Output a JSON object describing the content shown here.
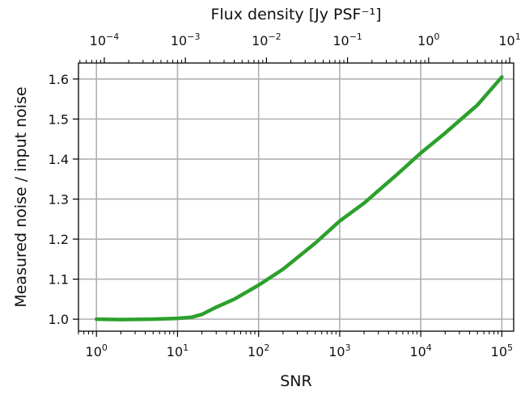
{
  "chart_data": {
    "type": "line",
    "xlabel": "SNR",
    "ylabel": "Measured noise / input noise",
    "top_xlabel": "Flux density [Jy PSF⁻¹]",
    "xscale": "log",
    "xlim": [
      0.6,
      140000
    ],
    "ylim": [
      0.97,
      1.64
    ],
    "x_ticks": [
      {
        "value": 1,
        "base": "10",
        "exp": "0"
      },
      {
        "value": 10,
        "base": "10",
        "exp": "1"
      },
      {
        "value": 100,
        "base": "10",
        "exp": "2"
      },
      {
        "value": 1000,
        "base": "10",
        "exp": "3"
      },
      {
        "value": 10000,
        "base": "10",
        "exp": "4"
      },
      {
        "value": 100000,
        "base": "10",
        "exp": "5"
      }
    ],
    "y_ticks": [
      "1.0",
      "1.1",
      "1.2",
      "1.3",
      "1.4",
      "1.5",
      "1.6"
    ],
    "top_ticks": [
      {
        "snr": 1.25,
        "base": "10",
        "exp": "−4"
      },
      {
        "snr": 12.5,
        "base": "10",
        "exp": "−3"
      },
      {
        "snr": 125,
        "base": "10",
        "exp": "−2"
      },
      {
        "snr": 1250,
        "base": "10",
        "exp": "−1"
      },
      {
        "snr": 12500,
        "base": "10",
        "exp": "0"
      },
      {
        "snr": 125000,
        "base": "10",
        "exp": "1"
      }
    ],
    "grid": true,
    "series": [
      {
        "color": "#2ca02c",
        "x": [
          1,
          2,
          5,
          10,
          15,
          20,
          30,
          50,
          100,
          200,
          500,
          1000,
          2000,
          5000,
          10000,
          20000,
          50000,
          100000
        ],
        "y": [
          1.0,
          0.999,
          1.0,
          1.002,
          1.005,
          1.012,
          1.03,
          1.05,
          1.085,
          1.125,
          1.19,
          1.245,
          1.29,
          1.36,
          1.415,
          1.465,
          1.535,
          1.605
        ]
      }
    ]
  }
}
